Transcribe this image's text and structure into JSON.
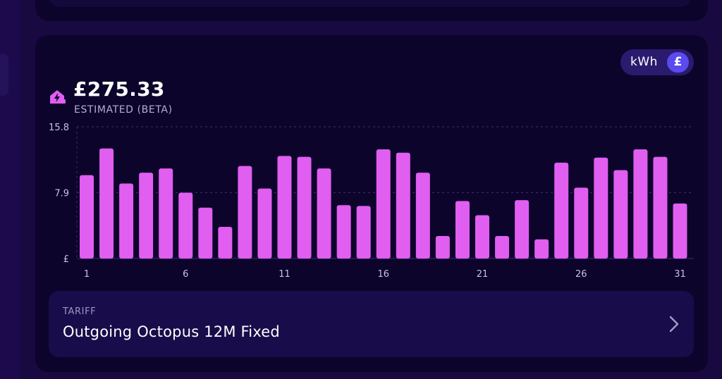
{
  "balance": {
    "amount": "£275.33",
    "label": "ESTIMATED (BETA)"
  },
  "unit_toggle": {
    "kwh_label": "kWh",
    "gbp_label": "£",
    "selected": "£"
  },
  "tariff": {
    "label": "TARIFF",
    "name": "Outgoing Octopus 12M Fixed"
  },
  "colors": {
    "bar": "#e05ef0",
    "card": "#0c042b",
    "toggle_active": "#5b4af0"
  },
  "chart_data": {
    "type": "bar",
    "title": "",
    "xlabel": "",
    "ylabel": "",
    "ylim": [
      0,
      15.8
    ],
    "ytick_labels": [
      {
        "value": 15.8,
        "label": "15.8"
      },
      {
        "value": 7.9,
        "label": "7.9"
      },
      {
        "value": 0,
        "label": "£"
      }
    ],
    "categories": [
      "1",
      "2",
      "3",
      "4",
      "5",
      "6",
      "7",
      "8",
      "9",
      "10",
      "11",
      "12",
      "13",
      "14",
      "15",
      "16",
      "17",
      "18",
      "19",
      "20",
      "21",
      "22",
      "23",
      "24",
      "25",
      "26",
      "27",
      "28",
      "29",
      "30",
      "31"
    ],
    "values": [
      10.0,
      13.2,
      9.0,
      10.3,
      10.8,
      7.9,
      6.1,
      3.8,
      11.1,
      8.4,
      12.3,
      12.2,
      10.8,
      6.4,
      6.3,
      13.1,
      12.7,
      10.3,
      2.7,
      6.9,
      5.2,
      2.7,
      7.0,
      2.3,
      11.5,
      8.5,
      12.1,
      10.6,
      13.1,
      12.2,
      6.6
    ],
    "xtick_labels": [
      "1",
      "6",
      "11",
      "16",
      "21",
      "26",
      "31"
    ],
    "grid": true,
    "legend": "none"
  }
}
